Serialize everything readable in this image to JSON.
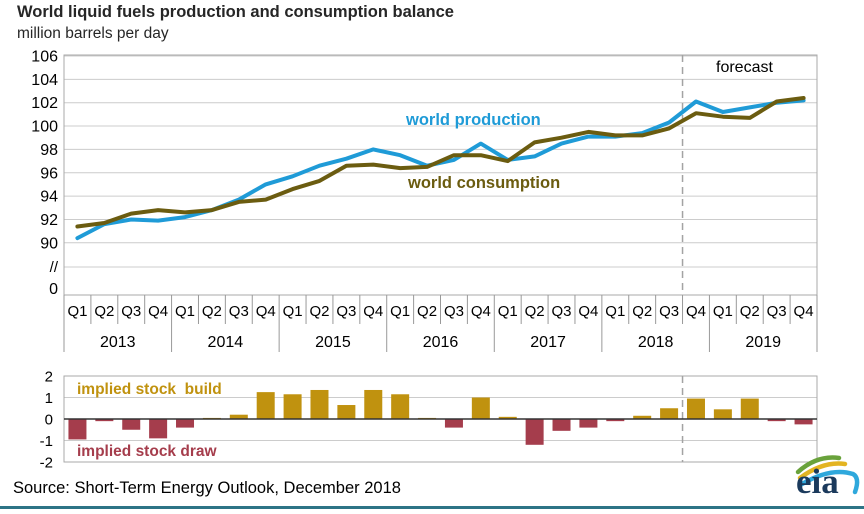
{
  "title": "World liquid fuels production and consumption balance",
  "subtitle": "million barrels per day",
  "source_line": "Source: Short-Term Energy Outlook, December 2018",
  "logo": {
    "text": "eia"
  },
  "colors": {
    "production": "#1f9bd7",
    "consumption": "#6b5c10",
    "stock_build": "#c0920f",
    "stock_draw": "#a53d4c",
    "grid": "#cccccc",
    "frame": "#a9a9a9",
    "dashed": "#a3a3a3",
    "axis_text": "#000000",
    "zero_axis": "#333333",
    "bottom_rule": "#2d7486",
    "logo_navy": "#1b3a5c",
    "logo_green": "#69a23b",
    "logo_gold": "#e3b422",
    "logo_blue": "#2fa8dc"
  },
  "chart_data": [
    {
      "type": "line",
      "title": "World liquid fuels production and consumption balance",
      "ylabel": "million barrels per day",
      "categories": [
        "2013 Q1",
        "2013 Q2",
        "2013 Q3",
        "2013 Q4",
        "2014 Q1",
        "2014 Q2",
        "2014 Q3",
        "2014 Q4",
        "2015 Q1",
        "2015 Q2",
        "2015 Q3",
        "2015 Q4",
        "2016 Q1",
        "2016 Q2",
        "2016 Q3",
        "2016 Q4",
        "2017 Q1",
        "2017 Q2",
        "2017 Q3",
        "2017 Q4",
        "2018 Q1",
        "2018 Q2",
        "2018 Q3",
        "2018 Q4",
        "2019 Q1",
        "2019 Q2",
        "2019 Q3",
        "2019 Q4"
      ],
      "quarter_labels": [
        "Q1",
        "Q2",
        "Q3",
        "Q4"
      ],
      "year_labels": [
        "2013",
        "2014",
        "2015",
        "2016",
        "2017",
        "2018",
        "2019"
      ],
      "yticks": [
        106,
        104,
        102,
        100,
        98,
        96,
        94,
        92,
        90
      ],
      "axis_break_symbol": "//",
      "axis_zero_label": "0",
      "ylim": [
        90,
        106
      ],
      "grid": true,
      "forecast_label": "forecast",
      "forecast_start_category": "2018 Q4",
      "series": [
        {
          "name": "world production",
          "values": [
            90.4,
            91.6,
            92.0,
            91.9,
            92.2,
            92.8,
            93.7,
            95.0,
            95.7,
            96.6,
            97.2,
            98.0,
            97.5,
            96.6,
            97.1,
            98.5,
            97.1,
            97.4,
            98.5,
            99.1,
            99.1,
            99.4,
            100.3,
            102.1,
            101.2,
            101.6,
            102.0,
            102.2
          ]
        },
        {
          "name": "world consumption",
          "values": [
            91.4,
            91.7,
            92.5,
            92.8,
            92.6,
            92.8,
            93.5,
            93.7,
            94.6,
            95.3,
            96.6,
            96.7,
            96.4,
            96.5,
            97.5,
            97.5,
            97.0,
            98.6,
            99.0,
            99.5,
            99.2,
            99.2,
            99.8,
            101.1,
            100.8,
            100.7,
            102.1,
            102.4
          ]
        }
      ]
    },
    {
      "type": "bar",
      "name": "implied stock change (million barrels per day)",
      "categories": [
        "2013 Q1",
        "2013 Q2",
        "2013 Q3",
        "2013 Q4",
        "2014 Q1",
        "2014 Q2",
        "2014 Q3",
        "2014 Q4",
        "2015 Q1",
        "2015 Q2",
        "2015 Q3",
        "2015 Q4",
        "2016 Q1",
        "2016 Q2",
        "2016 Q3",
        "2016 Q4",
        "2017 Q1",
        "2017 Q2",
        "2017 Q3",
        "2017 Q4",
        "2018 Q1",
        "2018 Q2",
        "2018 Q3",
        "2018 Q4",
        "2019 Q1",
        "2019 Q2",
        "2019 Q3",
        "2019 Q4"
      ],
      "values": [
        -0.95,
        -0.1,
        -0.5,
        -0.9,
        -0.4,
        0.05,
        0.2,
        1.25,
        1.15,
        1.35,
        0.65,
        1.35,
        1.15,
        0.05,
        -0.4,
        1.0,
        0.1,
        -1.2,
        -0.55,
        -0.4,
        -0.1,
        0.15,
        0.5,
        0.95,
        0.45,
        0.95,
        -0.1,
        -0.25
      ],
      "positive_label": "implied stock  build",
      "negative_label": "implied stock draw",
      "yticks": [
        2,
        1,
        0,
        -1,
        -2
      ],
      "ylim": [
        -2,
        2
      ],
      "forecast_start_category": "2018 Q4"
    }
  ]
}
